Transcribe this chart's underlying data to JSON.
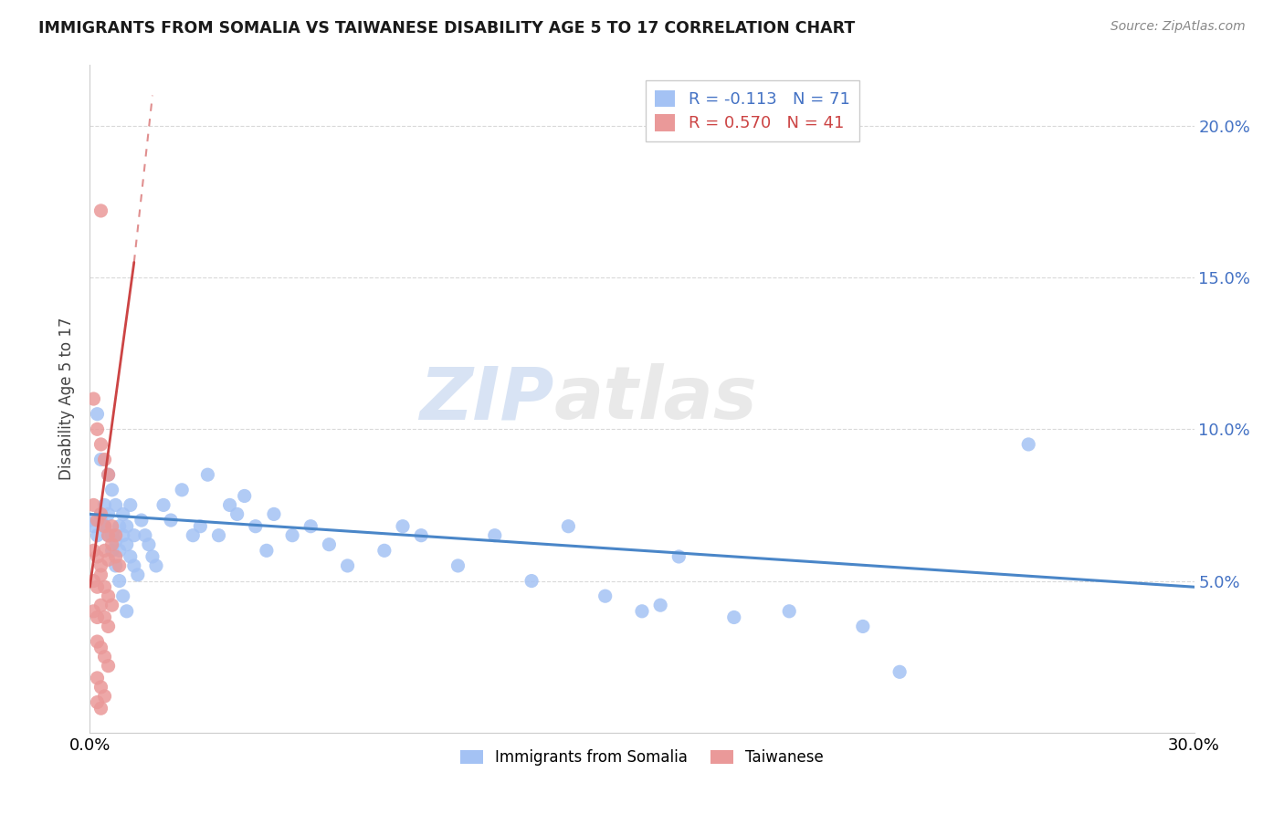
{
  "title": "IMMIGRANTS FROM SOMALIA VS TAIWANESE DISABILITY AGE 5 TO 17 CORRELATION CHART",
  "source": "Source: ZipAtlas.com",
  "ylabel": "Disability Age 5 to 17",
  "xlim": [
    0.0,
    0.3
  ],
  "ylim": [
    0.0,
    0.22
  ],
  "yticks": [
    0.05,
    0.1,
    0.15,
    0.2
  ],
  "ytick_labels_right": [
    "5.0%",
    "10.0%",
    "15.0%",
    "20.0%"
  ],
  "xticks": [
    0.0,
    0.3
  ],
  "xtick_labels": [
    "0.0%",
    "30.0%"
  ],
  "somalia_R": -0.113,
  "somalia_N": 71,
  "taiwanese_R": 0.57,
  "taiwanese_N": 41,
  "somalia_color": "#a4c2f4",
  "taiwanese_color": "#ea9999",
  "trend_somalia_color": "#4a86c8",
  "trend_taiwanese_color": "#cc4444",
  "soma_trend_x0": 0.0,
  "soma_trend_y0": 0.072,
  "soma_trend_x1": 0.3,
  "soma_trend_y1": 0.048,
  "tai_trend_solid_x0": 0.0,
  "tai_trend_solid_y0": 0.048,
  "tai_trend_solid_x1": 0.012,
  "tai_trend_solid_y1": 0.155,
  "tai_trend_dash_x0": 0.012,
  "tai_trend_dash_y0": 0.155,
  "tai_trend_dash_x1": 0.017,
  "tai_trend_dash_y1": 0.21,
  "watermark_zip": "ZIP",
  "watermark_atlas": "atlas",
  "background_color": "#ffffff",
  "grid_color": "#d0d0d0",
  "legend_somalia_label": "R = -0.113   N = 71",
  "legend_taiwanese_label": "R = 0.570   N = 41",
  "bottom_legend_somalia": "Immigrants from Somalia",
  "bottom_legend_taiwanese": "Taiwanese",
  "soma_scatter_x": [
    0.002,
    0.003,
    0.004,
    0.005,
    0.006,
    0.007,
    0.003,
    0.004,
    0.005,
    0.006,
    0.007,
    0.008,
    0.009,
    0.01,
    0.011,
    0.012,
    0.008,
    0.009,
    0.01,
    0.011,
    0.012,
    0.013,
    0.014,
    0.015,
    0.016,
    0.017,
    0.018,
    0.02,
    0.022,
    0.025,
    0.028,
    0.03,
    0.032,
    0.035,
    0.038,
    0.04,
    0.042,
    0.045,
    0.048,
    0.05,
    0.055,
    0.06,
    0.065,
    0.07,
    0.08,
    0.085,
    0.09,
    0.1,
    0.11,
    0.12,
    0.13,
    0.14,
    0.15,
    0.155,
    0.16,
    0.175,
    0.19,
    0.21,
    0.22,
    0.255,
    0.0,
    0.001,
    0.002,
    0.003,
    0.004,
    0.005,
    0.006,
    0.007,
    0.008,
    0.009,
    0.01
  ],
  "soma_scatter_y": [
    0.105,
    0.09,
    0.075,
    0.085,
    0.08,
    0.075,
    0.07,
    0.068,
    0.072,
    0.065,
    0.063,
    0.068,
    0.065,
    0.062,
    0.058,
    0.065,
    0.06,
    0.072,
    0.068,
    0.075,
    0.055,
    0.052,
    0.07,
    0.065,
    0.062,
    0.058,
    0.055,
    0.075,
    0.07,
    0.08,
    0.065,
    0.068,
    0.085,
    0.065,
    0.075,
    0.072,
    0.078,
    0.068,
    0.06,
    0.072,
    0.065,
    0.068,
    0.062,
    0.055,
    0.06,
    0.068,
    0.065,
    0.055,
    0.065,
    0.05,
    0.068,
    0.045,
    0.04,
    0.042,
    0.058,
    0.038,
    0.04,
    0.035,
    0.02,
    0.095,
    0.07,
    0.068,
    0.065,
    0.072,
    0.068,
    0.065,
    0.06,
    0.055,
    0.05,
    0.045,
    0.04
  ],
  "tai_scatter_x": [
    0.003,
    0.001,
    0.002,
    0.003,
    0.004,
    0.005,
    0.001,
    0.002,
    0.003,
    0.004,
    0.005,
    0.006,
    0.007,
    0.001,
    0.002,
    0.003,
    0.004,
    0.005,
    0.006,
    0.007,
    0.008,
    0.001,
    0.002,
    0.003,
    0.004,
    0.005,
    0.006,
    0.001,
    0.002,
    0.003,
    0.004,
    0.005,
    0.002,
    0.003,
    0.004,
    0.005,
    0.002,
    0.003,
    0.004,
    0.002,
    0.003
  ],
  "tai_scatter_y": [
    0.172,
    0.11,
    0.1,
    0.095,
    0.09,
    0.085,
    0.075,
    0.07,
    0.072,
    0.068,
    0.065,
    0.068,
    0.065,
    0.06,
    0.058,
    0.055,
    0.06,
    0.057,
    0.062,
    0.058,
    0.055,
    0.05,
    0.048,
    0.052,
    0.048,
    0.045,
    0.042,
    0.04,
    0.038,
    0.042,
    0.038,
    0.035,
    0.03,
    0.028,
    0.025,
    0.022,
    0.018,
    0.015,
    0.012,
    0.01,
    0.008
  ]
}
